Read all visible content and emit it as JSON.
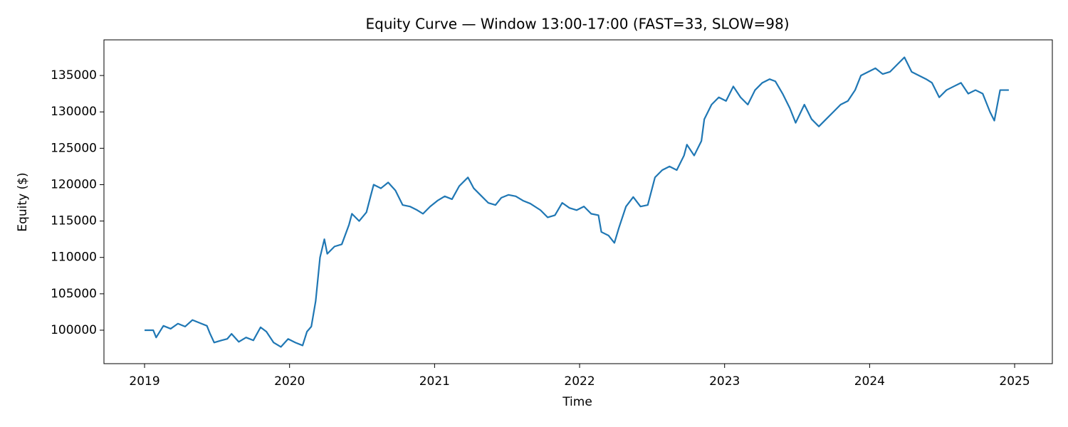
{
  "chart_data": {
    "type": "line",
    "title": "Equity Curve — Window 13:00-17:00 (FAST=33, SLOW=98)",
    "xlabel": "Time",
    "ylabel": "Equity ($)",
    "x": [
      2019.0,
      2019.06,
      2019.08,
      2019.13,
      2019.18,
      2019.23,
      2019.28,
      2019.33,
      2019.38,
      2019.43,
      2019.45,
      2019.48,
      2019.53,
      2019.57,
      2019.6,
      2019.65,
      2019.7,
      2019.75,
      2019.8,
      2019.84,
      2019.89,
      2019.94,
      2019.99,
      2020.04,
      2020.09,
      2020.12,
      2020.15,
      2020.18,
      2020.21,
      2020.24,
      2020.26,
      2020.31,
      2020.36,
      2020.41,
      2020.43,
      2020.48,
      2020.53,
      2020.56,
      2020.58,
      2020.63,
      2020.68,
      2020.73,
      2020.78,
      2020.83,
      2020.88,
      2020.92,
      2020.97,
      2021.02,
      2021.07,
      2021.12,
      2021.17,
      2021.23,
      2021.27,
      2021.32,
      2021.37,
      2021.42,
      2021.46,
      2021.51,
      2021.56,
      2021.61,
      2021.66,
      2021.73,
      2021.78,
      2021.83,
      2021.88,
      2021.93,
      2021.98,
      2022.03,
      2022.08,
      2022.13,
      2022.15,
      2022.2,
      2022.24,
      2022.27,
      2022.32,
      2022.37,
      2022.42,
      2022.47,
      2022.52,
      2022.57,
      2022.62,
      2022.67,
      2022.72,
      2022.74,
      2022.79,
      2022.84,
      2022.86,
      2022.91,
      2022.96,
      2023.01,
      2023.06,
      2023.11,
      2023.16,
      2023.21,
      2023.26,
      2023.31,
      2023.35,
      2023.4,
      2023.45,
      2023.49,
      2023.55,
      2023.6,
      2023.65,
      2023.7,
      2023.75,
      2023.8,
      2023.85,
      2023.9,
      2023.94,
      2023.99,
      2024.04,
      2024.09,
      2024.14,
      2024.19,
      2024.24,
      2024.29,
      2024.34,
      2024.39,
      2024.43,
      2024.48,
      2024.53,
      2024.58,
      2024.63,
      2024.68,
      2024.73,
      2024.78,
      2024.83,
      2024.86,
      2024.9,
      2024.96
    ],
    "series": [
      {
        "name": "Equity",
        "color": "#1f77b4",
        "values": [
          100000,
          100000,
          99000,
          100600,
          100200,
          100900,
          100500,
          101400,
          101000,
          100600,
          99600,
          98300,
          98600,
          98800,
          99500,
          98400,
          99000,
          98600,
          100400,
          99800,
          98300,
          97700,
          98800,
          98300,
          97900,
          99800,
          100500,
          104000,
          110000,
          112500,
          110500,
          111500,
          111800,
          114500,
          116000,
          115000,
          116200,
          118500,
          120000,
          119500,
          120300,
          119200,
          117200,
          117000,
          116500,
          116000,
          117000,
          117800,
          118400,
          118000,
          119800,
          121000,
          119500,
          118500,
          117500,
          117200,
          118200,
          118600,
          118400,
          117800,
          117400,
          116500,
          115500,
          115800,
          117500,
          116800,
          116500,
          117000,
          116000,
          115800,
          113500,
          113000,
          112000,
          114000,
          117000,
          118300,
          117000,
          117200,
          121000,
          122000,
          122500,
          122000,
          124000,
          125500,
          124000,
          126000,
          129000,
          131000,
          132000,
          131500,
          133500,
          132000,
          131000,
          133000,
          134000,
          134500,
          134200,
          132500,
          130500,
          128500,
          131000,
          129000,
          128000,
          129000,
          130000,
          131000,
          131500,
          133000,
          135000,
          135500,
          136000,
          135200,
          135500,
          136500,
          137500,
          135500,
          135000,
          134500,
          134000,
          132000,
          133000,
          133500,
          134000,
          132500,
          133000,
          132500,
          130000,
          128800,
          133000,
          133000
        ]
      }
    ],
    "xlim": [
      2018.72,
      2025.26
    ],
    "xticks": [
      2019,
      2020,
      2021,
      2022,
      2023,
      2024,
      2025
    ],
    "ylim": [
      95400,
      139900
    ],
    "yticks": [
      100000,
      105000,
      110000,
      115000,
      120000,
      125000,
      130000,
      135000
    ],
    "grid": false
  }
}
